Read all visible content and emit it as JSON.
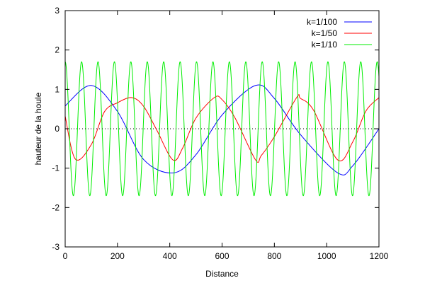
{
  "chart_data": {
    "type": "line",
    "title": "",
    "xlabel": "Distance",
    "ylabel": "hauteur de la houle",
    "xlim": [
      0,
      1200
    ],
    "ylim": [
      -3,
      3
    ],
    "xticks": [
      0,
      200,
      400,
      600,
      800,
      1000,
      1200
    ],
    "yticks": [
      -3,
      -2,
      -1,
      0,
      1,
      2,
      3
    ],
    "xtick_labels": [
      "0",
      "200",
      "400",
      "600",
      "800",
      "1000",
      "1200"
    ],
    "ytick_labels": [
      "-3",
      "-2",
      "-1",
      "0",
      "1",
      "2",
      "3"
    ],
    "grid": false,
    "zero_line": true,
    "legend_position": "top-right",
    "series": [
      {
        "name": "k=1/100",
        "color": "#0000ff",
        "x": [
          0,
          100,
          200,
          300,
          414,
          500,
          600,
          728,
          800,
          900,
          1042,
          1100,
          1200
        ],
        "y": [
          0.58,
          1.1,
          0.44,
          -0.78,
          -1.12,
          -0.66,
          0.35,
          1.1,
          0.77,
          -0.15,
          -1.12,
          -0.94,
          0.0
        ]
      },
      {
        "name": "k=1/50",
        "color": "#ff0000",
        "x": [
          0,
          39,
          100,
          150,
          200,
          255,
          300,
          350,
          412,
          450,
          500,
          570,
          600,
          650,
          728,
          750,
          800,
          885,
          900,
          950,
          1042,
          1100,
          1150,
          1200
        ],
        "y": [
          0.32,
          -0.77,
          -0.4,
          0.43,
          0.66,
          0.79,
          0.57,
          -0.03,
          -0.79,
          -0.48,
          0.27,
          0.79,
          0.74,
          0.27,
          -0.79,
          -0.68,
          -0.2,
          0.79,
          0.77,
          0.47,
          -0.79,
          -0.33,
          0.45,
          0.79
        ]
      },
      {
        "name": "k=1/10",
        "color": "#00ee00",
        "amplitude": 1.7,
        "period": 62.8,
        "phase_x0": 0,
        "x": [
          0,
          15.7,
          31.4,
          47.1,
          62.8
        ],
        "y": [
          1.7,
          0,
          -1.7,
          0,
          1.7
        ]
      }
    ]
  }
}
